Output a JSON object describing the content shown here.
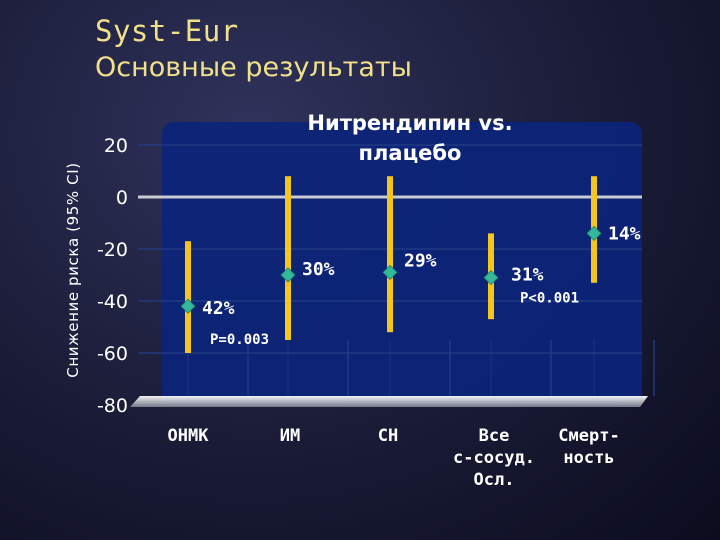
{
  "slide": {
    "title": "Syst-Eur",
    "subtitle": "Основные результаты"
  },
  "colors": {
    "bar": "#f4c61c",
    "marker": "#33b89a",
    "grid": "#233f86",
    "zero_line": "#c9ccd6",
    "plot_panel": "#0c2479"
  },
  "chart_data": {
    "type": "scatter",
    "title_lines": [
      "Нитрендипин vs.",
      "плацебо"
    ],
    "ylabel": "Снижение риска (95% CI)",
    "ylim": [
      -80,
      20
    ],
    "yticks": [
      20,
      0,
      -20,
      -40,
      -60,
      -80
    ],
    "categories": [
      {
        "lines": [
          "ОНМК"
        ]
      },
      {
        "lines": [
          "ИМ"
        ]
      },
      {
        "lines": [
          "СН"
        ]
      },
      {
        "lines": [
          "Все",
          "с-сосуд.",
          "Осл."
        ]
      },
      {
        "lines": [
          "Смерт-",
          "ность"
        ]
      }
    ],
    "points": [
      {
        "category": "ОНМК",
        "value": -42,
        "ci": [
          -60,
          -17
        ],
        "label": "42%",
        "p_label": "P=0.003"
      },
      {
        "category": "ИМ",
        "value": -30,
        "ci": [
          -55,
          8
        ],
        "label": "30%",
        "p_label": ""
      },
      {
        "category": "СН",
        "value": -29,
        "ci": [
          -52,
          8
        ],
        "label": "29%",
        "p_label": ""
      },
      {
        "category": "Все с-сосуд. Осл.",
        "value": -31,
        "ci": [
          -47,
          -14
        ],
        "label": "31%",
        "p_label": "P<0.001"
      },
      {
        "category": "Смертность",
        "value": -14,
        "ci": [
          -33,
          8
        ],
        "label": "14%",
        "p_label": ""
      }
    ]
  }
}
